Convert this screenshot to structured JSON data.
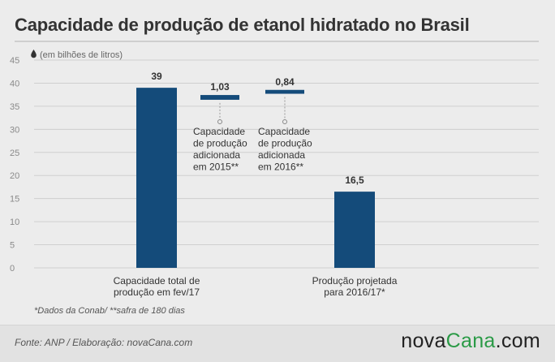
{
  "title": "Capacidade de produção de etanol hidratado no Brasil",
  "unit_label": "(em bilhões de litros)",
  "footnote": "*Dados da Conab/ **safra de 180 dias",
  "source": "Fonte: ANP / Elaboração: novaCana.com",
  "brand": {
    "part1": "nova",
    "part2": "Cana",
    "part3": ".com"
  },
  "colors": {
    "bar": "#144b7a",
    "grid": "#cfcfcf",
    "axis_text": "#8a8a8a",
    "text": "#333333",
    "brand_accent": "#2a9a46"
  },
  "icons": {
    "unit": "drop-icon"
  },
  "chart_data": {
    "type": "bar",
    "ylim": [
      0,
      45
    ],
    "yticks": [
      0,
      5,
      10,
      15,
      20,
      25,
      30,
      35,
      40,
      45
    ],
    "grid": true,
    "bars": [
      {
        "label": "39",
        "value": 39,
        "category_lines": [
          "Capacidade total de",
          "produção em fev/17"
        ]
      },
      {
        "label": "16,5",
        "value": 16.5,
        "category_lines": [
          "Produção projetada",
          "para 2016/17*"
        ]
      }
    ],
    "increments": [
      {
        "label": "1,03",
        "value": 1.03,
        "base": 36.4,
        "note_lines": [
          "Capacidade",
          "de produção",
          "adicionada",
          "em 2015**"
        ]
      },
      {
        "label": "0,84",
        "value": 0.84,
        "base": 37.7,
        "note_lines": [
          "Capacidade",
          "de produção",
          "adicionada",
          "em 2016**"
        ]
      }
    ]
  }
}
